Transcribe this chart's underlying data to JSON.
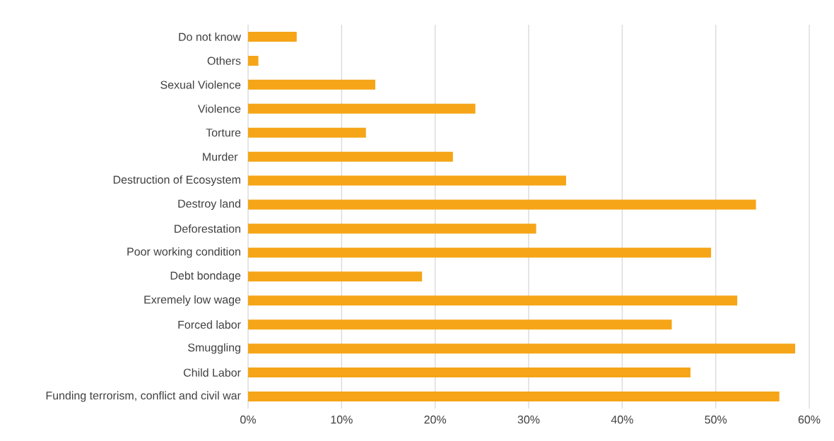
{
  "chart_data": {
    "type": "bar",
    "orientation": "horizontal",
    "categories": [
      "Do not know",
      "Others",
      "Sexual Violence",
      "Violence",
      "Torture",
      "Murder ",
      "Destruction of Ecosystem",
      "Destroy land",
      "Deforestation",
      "Poor working condition",
      "Debt bondage",
      "Exremely low wage",
      "Forced labor",
      "Smuggling",
      "Child Labor",
      "Funding terrorism, conflict and civil war"
    ],
    "values": [
      5.2,
      1.1,
      13.6,
      24.3,
      12.6,
      21.9,
      34.0,
      54.3,
      30.8,
      49.5,
      18.6,
      52.3,
      45.3,
      58.5,
      47.3,
      56.8
    ],
    "color": "#f5a517",
    "xlim": [
      0,
      60
    ],
    "xticks": [
      {
        "value": 0,
        "label": "0%"
      },
      {
        "value": 10,
        "label": "10%"
      },
      {
        "value": 20,
        "label": "20%"
      },
      {
        "value": 30,
        "label": "30%"
      },
      {
        "value": 40,
        "label": "40%"
      },
      {
        "value": 50,
        "label": "50%"
      },
      {
        "value": 60,
        "label": "60%"
      }
    ],
    "grid": "x"
  }
}
